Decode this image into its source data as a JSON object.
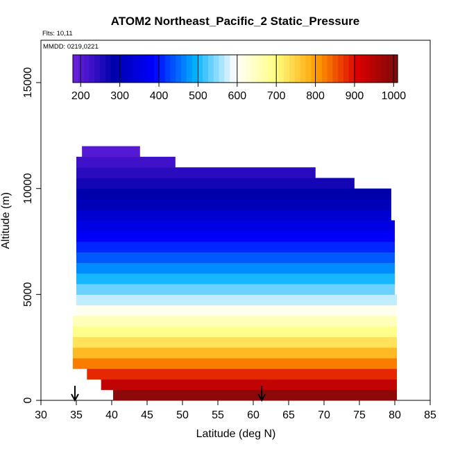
{
  "chart_data": {
    "type": "heatmap",
    "title": "ATOM2 Northeast_Pacific_2 Static_Pressure",
    "flights_label": "Flts: 10,11",
    "dates_label": "MMDD: 0219,0221",
    "xlabel": "Latitude (deg N)",
    "ylabel": "Altitude (m)",
    "xlim": [
      30,
      85
    ],
    "ylim": [
      0,
      17000
    ],
    "xticks": [
      "30",
      "35",
      "40",
      "45",
      "50",
      "55",
      "60",
      "65",
      "70",
      "75",
      "80",
      "85"
    ],
    "yticks": [
      "0",
      "5000",
      "10000",
      "15000"
    ],
    "colorbar": {
      "ticks": [
        "200",
        "300",
        "400",
        "500",
        "600",
        "700",
        "800",
        "900",
        "1000"
      ],
      "range": [
        180,
        1010
      ],
      "colors": [
        "#7020e0",
        "#0000aa",
        "#0000ff",
        "#00b0ff",
        "#ffffff",
        "#ffff80",
        "#ffa000",
        "#dd0000",
        "#7a0a0a"
      ]
    },
    "arrows_at_latitude": [
      34.8,
      61.2
    ],
    "layers": [
      {
        "alt": [
          0,
          500
        ],
        "lat": [
          40.2,
          80.3
        ],
        "pressure": 990
      },
      {
        "alt": [
          500,
          1000
        ],
        "lat": [
          38.5,
          80.3
        ],
        "pressure": 935
      },
      {
        "alt": [
          1000,
          1500
        ],
        "lat": [
          36.5,
          80.3
        ],
        "pressure": 880
      },
      {
        "alt": [
          1500,
          2000
        ],
        "lat": [
          34.5,
          80.3
        ],
        "pressure": 825
      },
      {
        "alt": [
          2000,
          2500
        ],
        "lat": [
          34.5,
          80.3
        ],
        "pressure": 775
      },
      {
        "alt": [
          2500,
          3000
        ],
        "lat": [
          34.5,
          80.3
        ],
        "pressure": 730
      },
      {
        "alt": [
          3000,
          3500
        ],
        "lat": [
          34.5,
          80.3
        ],
        "pressure": 690
      },
      {
        "alt": [
          3500,
          4000
        ],
        "lat": [
          34.5,
          80.3
        ],
        "pressure": 650
      },
      {
        "alt": [
          4000,
          4500
        ],
        "lat": [
          35,
          80.3
        ],
        "pressure": 610
      },
      {
        "alt": [
          4500,
          5000
        ],
        "lat": [
          35,
          80.3
        ],
        "pressure": 570
      },
      {
        "alt": [
          5000,
          5500
        ],
        "lat": [
          35,
          80
        ],
        "pressure": 535
      },
      {
        "alt": [
          5500,
          6000
        ],
        "lat": [
          35,
          80
        ],
        "pressure": 500
      },
      {
        "alt": [
          6000,
          6500
        ],
        "lat": [
          35,
          80
        ],
        "pressure": 470
      },
      {
        "alt": [
          6500,
          7000
        ],
        "lat": [
          35,
          80
        ],
        "pressure": 440
      },
      {
        "alt": [
          7000,
          7500
        ],
        "lat": [
          35,
          80
        ],
        "pressure": 410
      },
      {
        "alt": [
          7500,
          8000
        ],
        "lat": [
          35,
          80
        ],
        "pressure": 380
      },
      {
        "alt": [
          8000,
          8500
        ],
        "lat": [
          35,
          80
        ],
        "pressure": 355
      },
      {
        "alt": [
          8500,
          9000
        ],
        "lat": [
          35,
          79.5
        ],
        "pressure": 330
      },
      {
        "alt": [
          9000,
          9500
        ],
        "lat": [
          35,
          79.5
        ],
        "pressure": 305
      },
      {
        "alt": [
          9500,
          10000
        ],
        "lat": [
          35,
          79.5
        ],
        "pressure": 285
      },
      {
        "alt": [
          10000,
          10500
        ],
        "lat": [
          35,
          74.3
        ],
        "pressure": 265
      },
      {
        "alt": [
          10500,
          11000
        ],
        "lat": [
          35,
          68.8
        ],
        "pressure": 245
      },
      {
        "alt": [
          11000,
          11500
        ],
        "lat": [
          35,
          49
        ],
        "pressure": 225
      },
      {
        "alt": [
          11500,
          12000
        ],
        "lat": [
          35.8,
          44
        ],
        "pressure": 205
      }
    ]
  }
}
